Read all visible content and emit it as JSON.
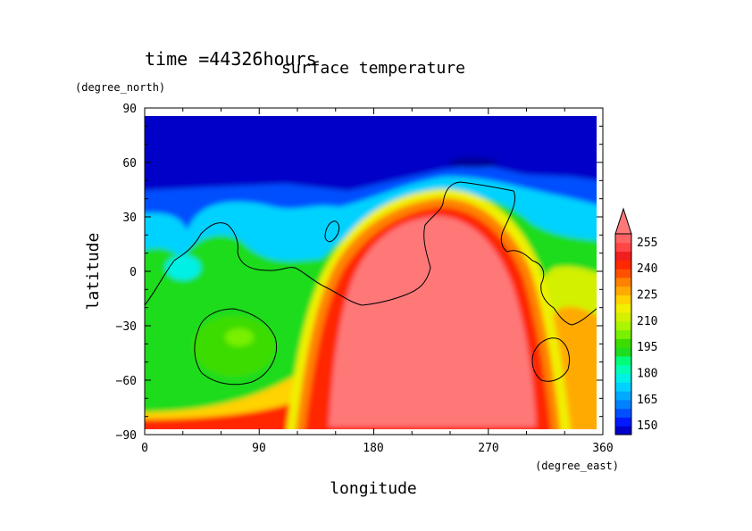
{
  "chart_data": {
    "type": "heatmap",
    "time_label": "time =44326hours",
    "title": "surface temperature",
    "xlabel": "longitude",
    "ylabel": "latitude",
    "xunit": "(degree_east)",
    "yunit": "(degree_north)",
    "xlim": [
      0,
      360
    ],
    "ylim": [
      -90,
      90
    ],
    "xticks": [
      "0",
      "90",
      "180",
      "270",
      "360"
    ],
    "yticks": [
      "90",
      "60",
      "30",
      "0",
      "−30",
      "−60",
      "−90"
    ],
    "colorbar": {
      "labels": [
        "150",
        "165",
        "180",
        "195",
        "210",
        "225",
        "240",
        "255"
      ],
      "levels": [
        145,
        150,
        155,
        160,
        165,
        170,
        175,
        180,
        185,
        190,
        195,
        200,
        205,
        210,
        215,
        220,
        225,
        230,
        235,
        240,
        245,
        250,
        255,
        260
      ],
      "colors": [
        "#0000c8",
        "#0019ff",
        "#0050ff",
        "#0082ff",
        "#00aaff",
        "#00d2ff",
        "#00f0e6",
        "#00ffb4",
        "#00ff78",
        "#1edc1e",
        "#3cdc00",
        "#78f000",
        "#aaf500",
        "#d2f000",
        "#f0f000",
        "#ffd200",
        "#ffaa00",
        "#ff8200",
        "#ff5000",
        "#ff2800",
        "#f01e1e",
        "#ff4646",
        "#ff6464",
        "#ff7878"
      ],
      "extend_color": "#ff7878"
    }
  }
}
